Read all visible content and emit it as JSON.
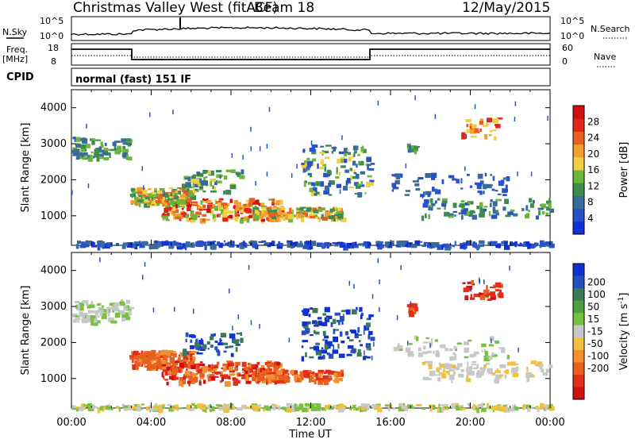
{
  "header": {
    "station": "Christmas Valley West (fitACF)",
    "beam": "Beam 18",
    "date": "12/May/2015",
    "cpid_label": "CPID",
    "cpid_text": "normal (fast) 151 IF"
  },
  "strips": {
    "nsky_label": "N.Sky",
    "nsearch_label": "N.Search",
    "noise_ticks": [
      "10^5",
      "10^0"
    ],
    "freq_label_line1": "Freq.",
    "freq_label_line2": "[MHz]",
    "freq_ticks": [
      "18",
      "8"
    ],
    "nave_label": "Nave",
    "nave_ticks": [
      "60",
      "0"
    ]
  },
  "chart_data": [
    {
      "type": "heatmap",
      "ylabel": "Slant Range [km]",
      "xlabel": "Time UT",
      "x_ticks": [
        "00:00",
        "04:00",
        "08:00",
        "12:00",
        "16:00",
        "20:00",
        "00:00"
      ],
      "y_ticks": [
        1000,
        2000,
        3000,
        4000
      ],
      "ylim": [
        180,
        4500
      ],
      "xlim": [
        0,
        24
      ],
      "colorbar": {
        "label": "Power [dB]",
        "ticks": [
          4,
          8,
          12,
          16,
          20,
          24,
          28
        ],
        "colors": [
          "#1030d8",
          "#2850c8",
          "#3a6a9a",
          "#3c8c50",
          "#6cb43c",
          "#f0d040",
          "#f0a030",
          "#e86020",
          "#e02818",
          "#d01010"
        ]
      }
    },
    {
      "type": "heatmap",
      "ylabel": "Slant Range [km]",
      "xlabel": "Time UT",
      "x_ticks": [
        "00:00",
        "04:00",
        "08:00",
        "12:00",
        "16:00",
        "20:00",
        "00:00"
      ],
      "y_ticks": [
        1000,
        2000,
        3000,
        4000
      ],
      "ylim": [
        180,
        4500
      ],
      "xlim": [
        0,
        24
      ],
      "colorbar": {
        "label": "Velocity [m s⁻¹]",
        "label_text": "Velocity",
        "label_unit": "[m s",
        "label_exp": "-1",
        "label_close": "]",
        "ticks": [
          "200",
          "100",
          "50",
          "15",
          "-15",
          "-50",
          "-100",
          "-200"
        ],
        "colors": [
          "#1030d0",
          "#2850b8",
          "#3a7a5a",
          "#4ca040",
          "#78c040",
          "#c8c8c8",
          "#f0c040",
          "#f09030",
          "#e86020",
          "#e03018",
          "#d01010"
        ]
      }
    }
  ],
  "axis": {
    "xlabel": "Time UT"
  }
}
